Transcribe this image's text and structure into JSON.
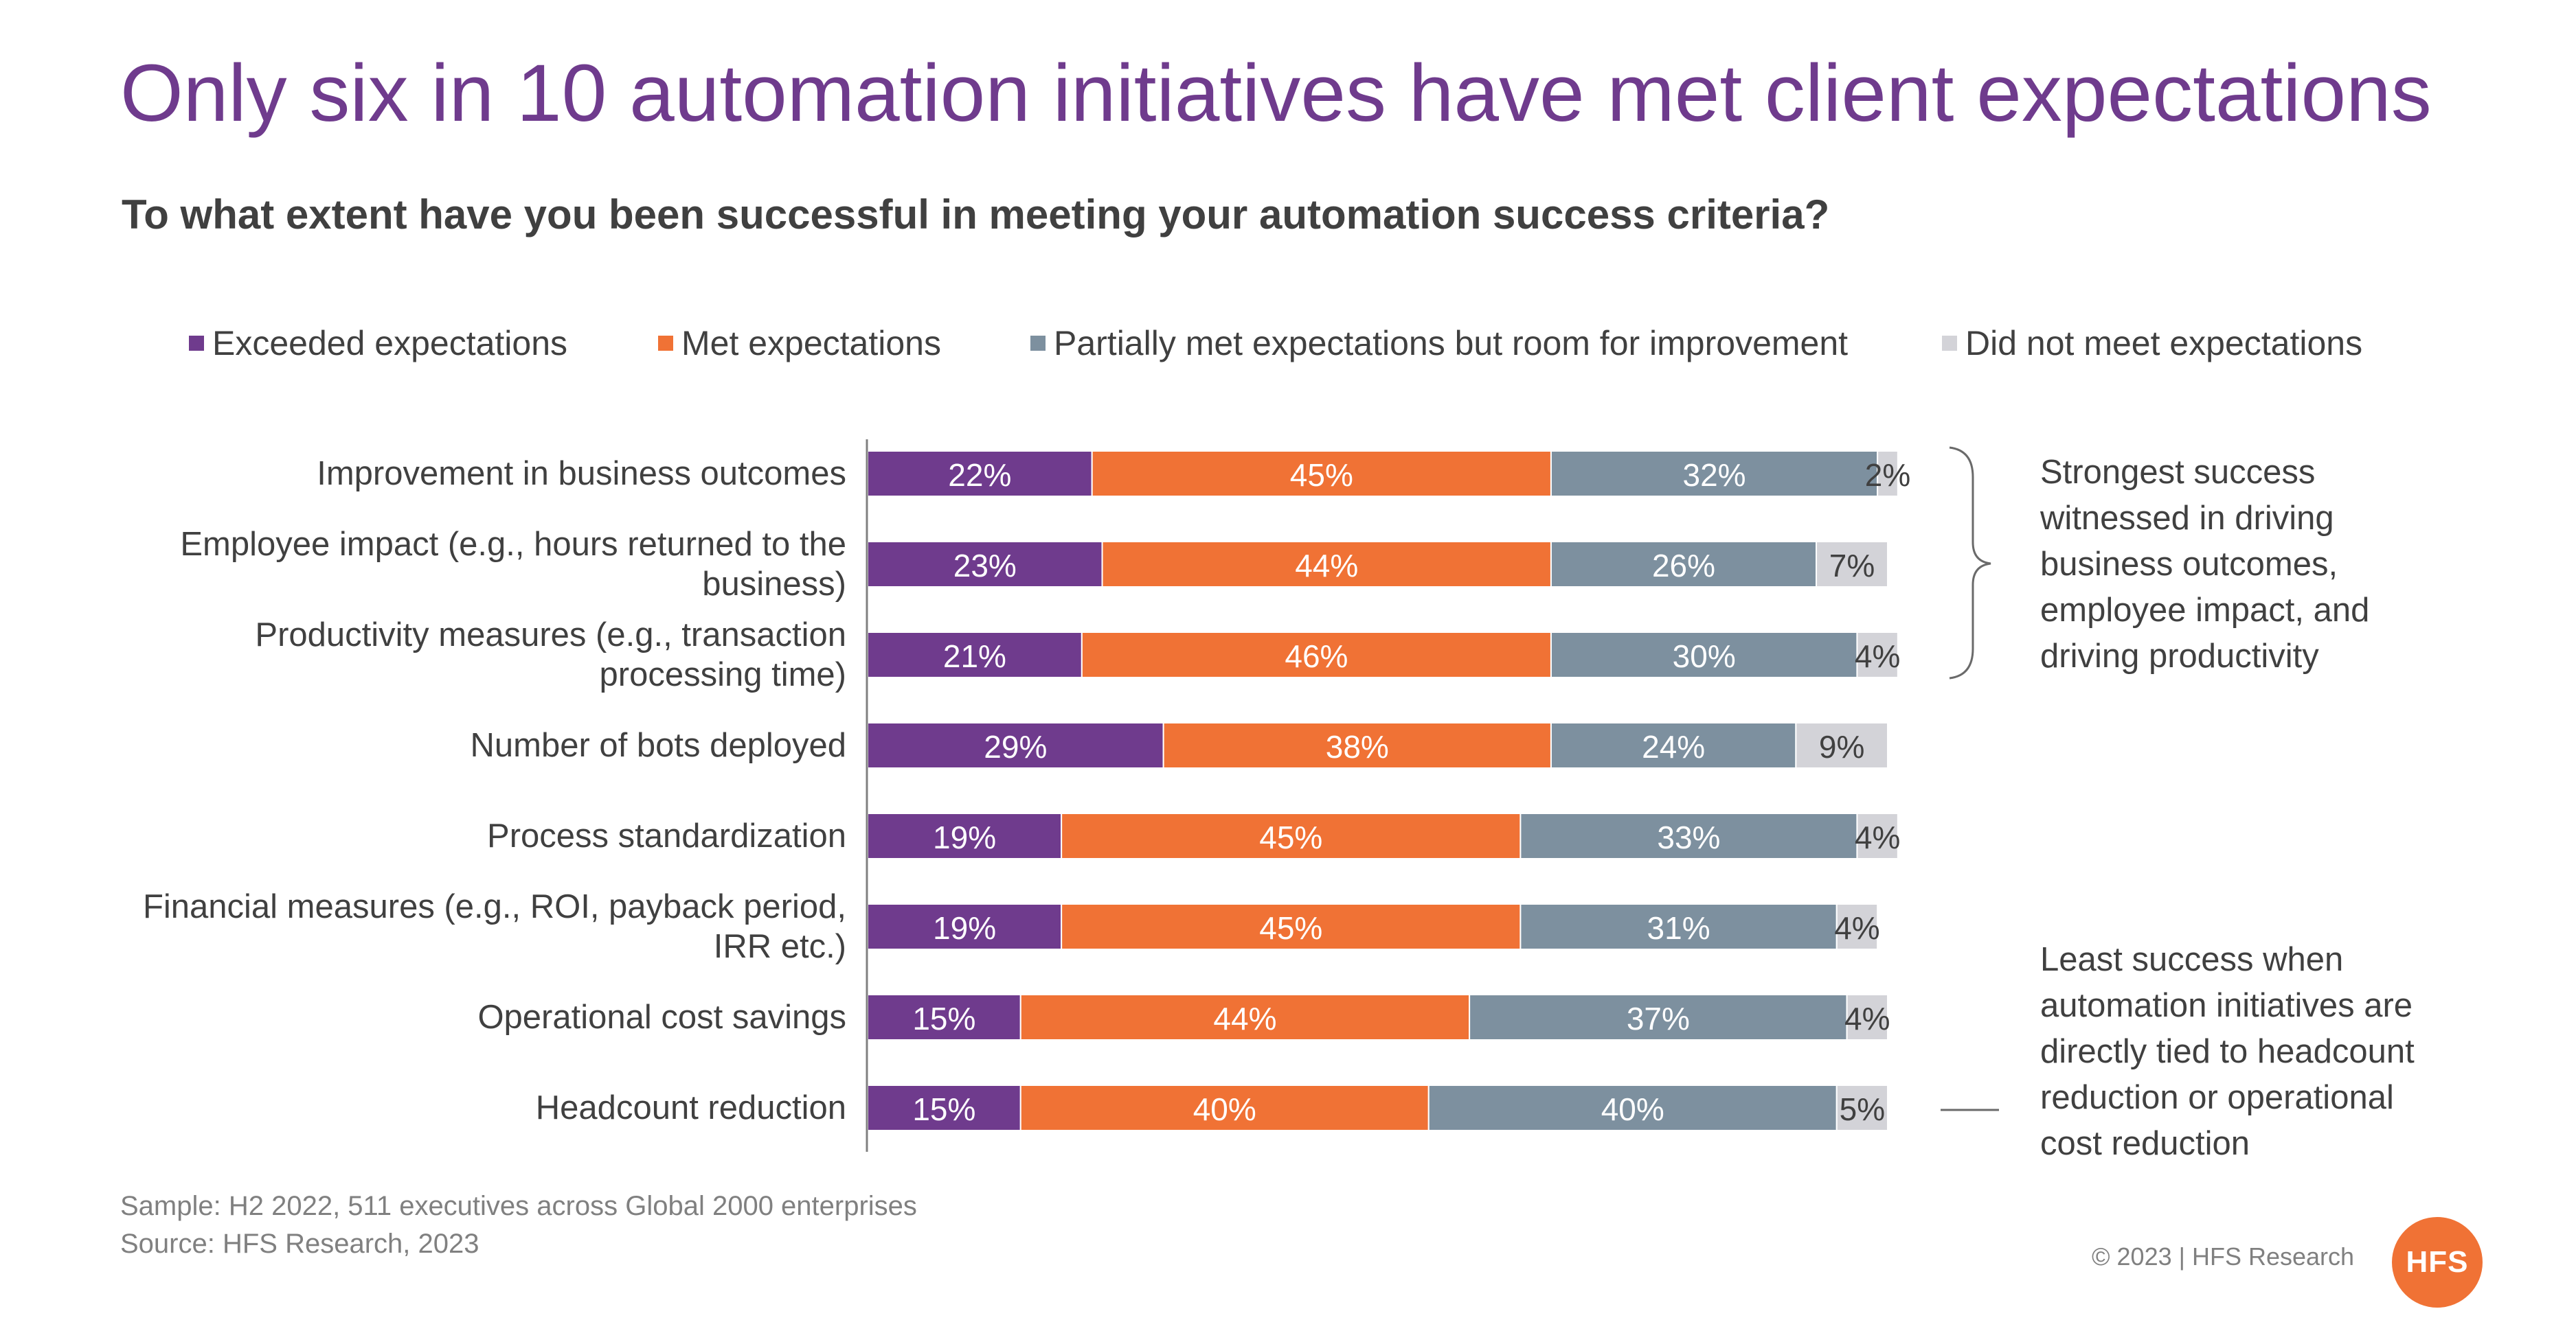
{
  "title": "Only six in 10 automation initiatives have met client expectations",
  "subtitle": "To what extent have you been successful in meeting your automation success criteria?",
  "colors": {
    "exceeded": "#6f3b8d",
    "met": "#f07235",
    "partial": "#7d909f",
    "not_met": "#d3d3d8",
    "title": "#6f3b8d"
  },
  "chart_data": {
    "type": "bar",
    "orientation": "horizontal",
    "stacked": true,
    "categories": [
      "Improvement in business outcomes",
      "Employee impact (e.g., hours returned to the business)",
      "Productivity measures (e.g., transaction processing time)",
      "Number of bots deployed",
      "Process standardization",
      "Financial measures (e.g., ROI, payback period, IRR etc.)",
      "Operational cost savings",
      "Headcount reduction"
    ],
    "series": [
      {
        "name": "Exceeded expectations",
        "values": [
          22,
          23,
          21,
          29,
          19,
          19,
          15,
          15
        ]
      },
      {
        "name": "Met expectations",
        "values": [
          45,
          44,
          46,
          38,
          45,
          45,
          44,
          40
        ]
      },
      {
        "name": "Partially met expectations but room for improvement",
        "values": [
          32,
          26,
          30,
          24,
          33,
          31,
          37,
          40
        ]
      },
      {
        "name": "Did not meet expectations",
        "values": [
          2,
          7,
          4,
          9,
          4,
          4,
          4,
          5
        ]
      }
    ],
    "value_suffix": "%",
    "legend": "top",
    "grid": false
  },
  "category_label_lines": [
    [
      "Improvement in business outcomes"
    ],
    [
      "Employee impact (e.g., hours returned to the",
      "business)"
    ],
    [
      "Productivity measures (e.g., transaction",
      "processing time)"
    ],
    [
      "Number of bots deployed"
    ],
    [
      "Process standardization"
    ],
    [
      "Financial measures (e.g., ROI, payback period,",
      "IRR etc.)"
    ],
    [
      "Operational cost savings"
    ],
    [
      "Headcount reduction"
    ]
  ],
  "notes": {
    "top": "Strongest success\nwitnessed in driving\nbusiness outcomes,\nemployee impact, and\ndriving productivity",
    "bottom": "Least success when\nautomation initiatives are\ndirectly tied to headcount\nreduction or operational\ncost reduction"
  },
  "footer": {
    "sample": "Sample: H2 2022, 511 executives across Global 2000 enterprises",
    "source": "Source: HFS Research, 2023",
    "copyright": "© 2023 | HFS Research",
    "logo_text": "HFS"
  }
}
